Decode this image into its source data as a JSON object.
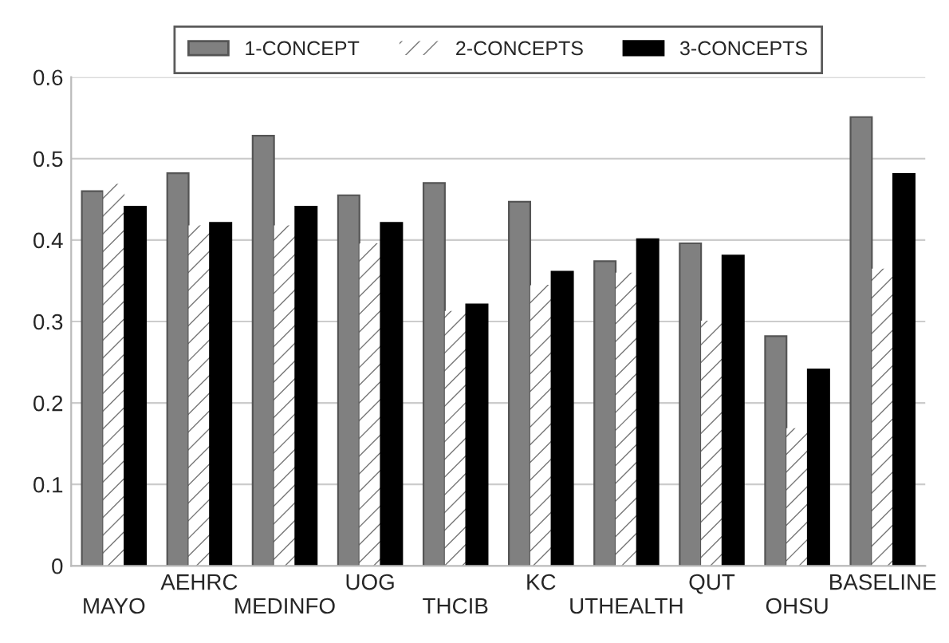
{
  "chart_data": {
    "type": "bar",
    "categories": [
      "MAYO",
      "AEHRC",
      "MEDINFO",
      "UOG",
      "THCIB",
      "KC",
      "UTHEALTH",
      "QUT",
      "OHSU",
      "BASELINE"
    ],
    "series": [
      {
        "name": "1-CONCEPT",
        "color": "#808080",
        "values": [
          0.46,
          0.482,
          0.528,
          0.455,
          0.47,
          0.447,
          0.374,
          0.396,
          0.282,
          0.551
        ]
      },
      {
        "name": "2-CONCEPTS",
        "color": "#ffffff",
        "values": [
          0.469,
          0.418,
          0.418,
          0.396,
          0.313,
          0.345,
          0.36,
          0.301,
          0.169,
          0.365
        ]
      },
      {
        "name": "3-CONCEPTS",
        "color": "#000000",
        "values": [
          0.441,
          0.421,
          0.441,
          0.421,
          0.321,
          0.361,
          0.401,
          0.381,
          0.241,
          0.481
        ]
      }
    ],
    "ylim": [
      0,
      0.6
    ],
    "yticks": [
      0,
      0.1,
      0.2,
      0.3,
      0.4,
      0.5,
      0.6
    ],
    "grid": "y",
    "legend": "top"
  }
}
